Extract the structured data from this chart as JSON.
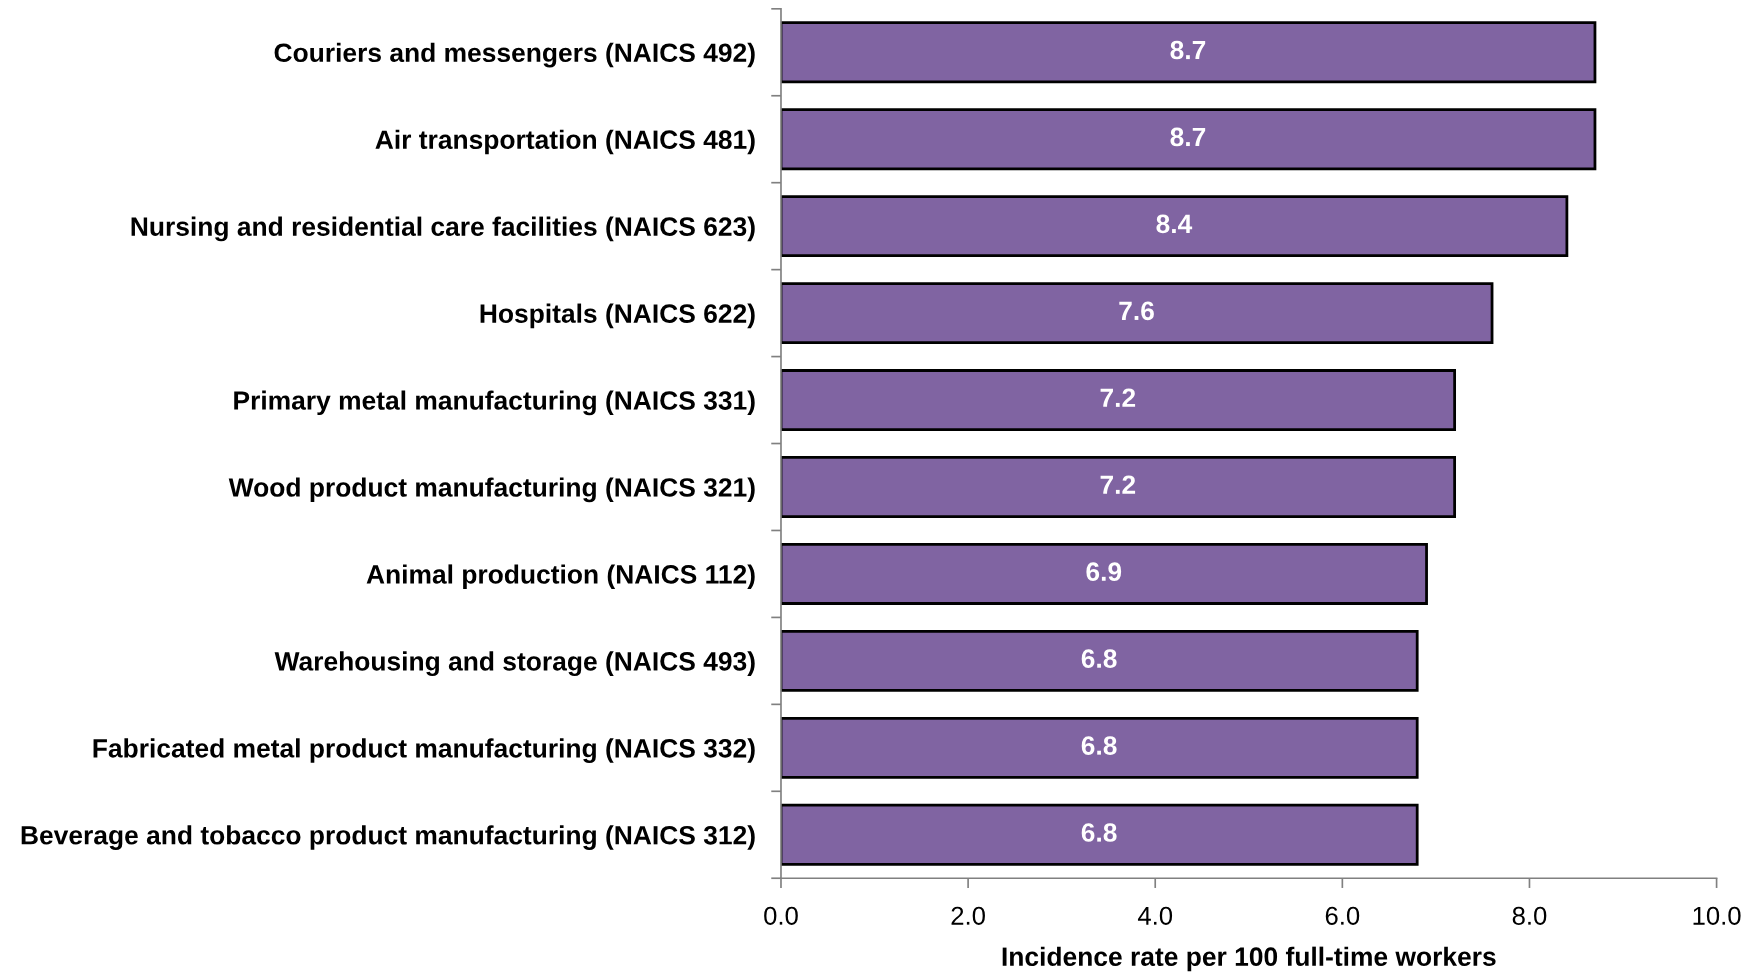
{
  "chart_data": {
    "type": "bar",
    "orientation": "horizontal",
    "xlabel": "Incidence rate per 100 full-time workers",
    "categories": [
      "Couriers and messengers (NAICS 492)",
      "Air transportation (NAICS 481)",
      "Nursing and residential care facilities (NAICS 623)",
      "Hospitals (NAICS 622)",
      "Primary metal manufacturing (NAICS 331)",
      "Wood product manufacturing (NAICS 321)",
      "Animal production (NAICS 112)",
      "Warehousing and storage (NAICS 493)",
      "Fabricated metal product manufacturing (NAICS 332)",
      "Beverage and tobacco product manufacturing (NAICS 312)"
    ],
    "values": [
      8.7,
      8.7,
      8.4,
      7.6,
      7.2,
      7.2,
      6.9,
      6.8,
      6.8,
      6.8
    ],
    "color": "#8064a2",
    "xlim": [
      0,
      10
    ],
    "xticks": [
      {
        "value": 0,
        "label": "0.0"
      },
      {
        "value": 2,
        "label": "2.0"
      },
      {
        "value": 4,
        "label": "4.0"
      },
      {
        "value": 6,
        "label": "6.0"
      },
      {
        "value": 8,
        "label": "8.0"
      },
      {
        "value": 10,
        "label": "10.0"
      }
    ],
    "data_labels": true
  }
}
